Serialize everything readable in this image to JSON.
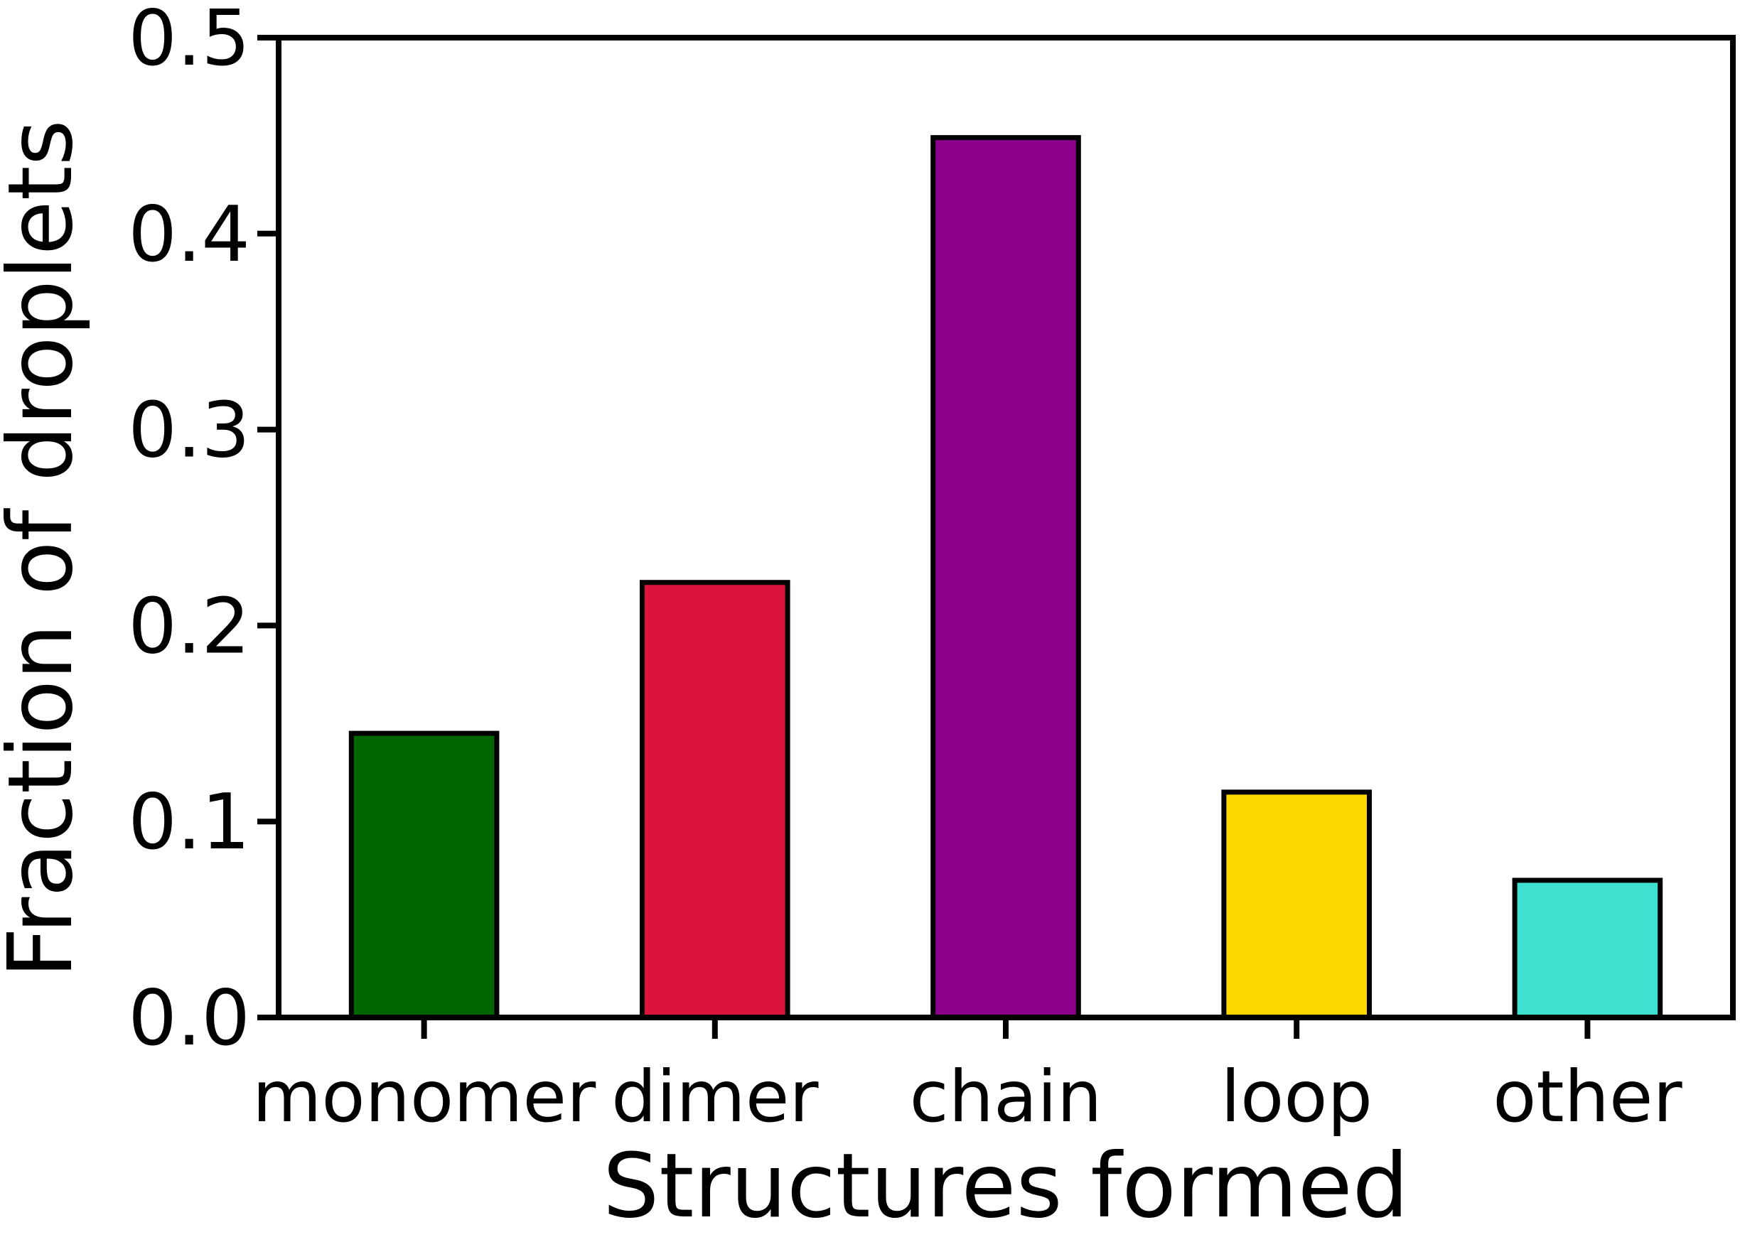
{
  "chart_data": {
    "type": "bar",
    "title": "",
    "xlabel": "Structures formed",
    "ylabel": "Fraction of droplets",
    "categories": [
      "monomer",
      "dimer",
      "chain",
      "loop",
      "other"
    ],
    "values": [
      0.145,
      0.222,
      0.449,
      0.115,
      0.07
    ],
    "colors": [
      "#006400",
      "#DC143C",
      "#8B008B",
      "#FFD700",
      "#40E0D0"
    ],
    "ylim": [
      0,
      0.5
    ],
    "yticks": [
      0.0,
      0.1,
      0.2,
      0.3,
      0.4,
      0.5
    ],
    "ytick_labels": [
      "0.0",
      "0.1",
      "0.2",
      "0.3",
      "0.4",
      "0.5"
    ],
    "grid": false,
    "legend": false
  }
}
